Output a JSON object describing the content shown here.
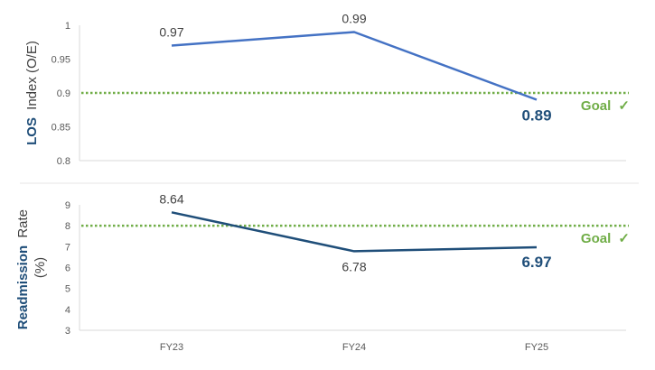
{
  "chart_data": [
    {
      "type": "line",
      "categories": [
        "FY23",
        "FY24",
        "FY25"
      ],
      "series": [
        {
          "values": [
            0.97,
            0.99,
            0.89
          ],
          "color": "#4472C4"
        }
      ],
      "data_labels": [
        "0.97",
        "0.99",
        "0.89"
      ],
      "ylabel_bold": "LOS",
      "ylabel_rest": "Index (O/E)",
      "ylim": [
        0.8,
        1
      ],
      "yticks": [
        0.8,
        0.85,
        0.9,
        0.95,
        1
      ],
      "ytick_labels": [
        "0.8",
        "0.85",
        "0.9",
        "0.95",
        "1"
      ],
      "goal": {
        "value": 0.9,
        "label": "Goal",
        "mark": "✓",
        "color": "#70AD47"
      },
      "last_label_color": "#1F4E79"
    },
    {
      "type": "line",
      "categories": [
        "FY23",
        "FY24",
        "FY25"
      ],
      "series": [
        {
          "values": [
            8.64,
            6.78,
            6.97
          ],
          "color": "#1F4E79"
        }
      ],
      "data_labels": [
        "8.64",
        "6.78",
        "6.97"
      ],
      "ylabel_bold": "Readmission",
      "ylabel_rest": "Rate",
      "ylabel_line2": "(%)",
      "ylim": [
        3,
        9
      ],
      "yticks": [
        3,
        4,
        5,
        6,
        7,
        8,
        9
      ],
      "ytick_labels": [
        "3",
        "4",
        "5",
        "6",
        "7",
        "8",
        "9"
      ],
      "goal": {
        "value": 8,
        "label": "Goal",
        "mark": "✓",
        "color": "#70AD47"
      },
      "last_label_color": "#1F4E79"
    }
  ],
  "x_tick_labels": [
    "FY23",
    "FY24",
    "FY25"
  ]
}
